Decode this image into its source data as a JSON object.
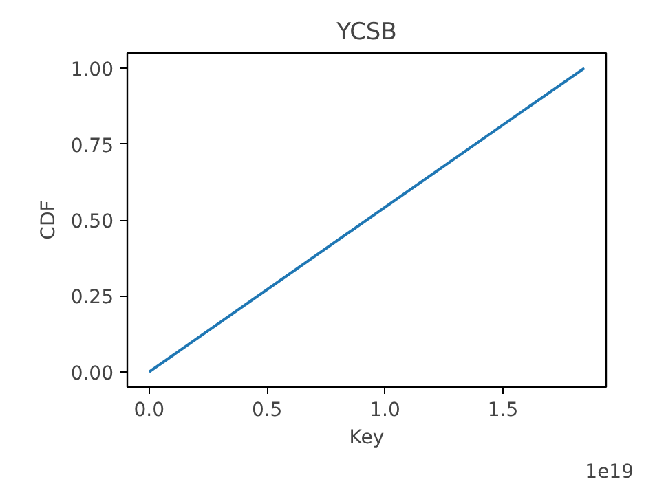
{
  "chart_data": {
    "type": "line",
    "title": "YCSB",
    "xlabel": "Key",
    "ylabel": "CDF",
    "x": [
      0,
      1.845
    ],
    "series": [
      {
        "color": "#1f77b4",
        "values": [
          0,
          1.0
        ]
      }
    ],
    "xlim": [
      -0.0925,
      1.9375
    ],
    "xticks": [
      {
        "value": 0,
        "label": "0.0"
      },
      {
        "value": 0.5,
        "label": "0.5"
      },
      {
        "value": 1.0,
        "label": "1.0"
      },
      {
        "value": 1.5,
        "label": "1.5"
      }
    ],
    "ylim": [
      -0.05,
      1.05
    ],
    "yticks": [
      {
        "value": 0,
        "label": "0.00"
      },
      {
        "value": 0.25,
        "label": "0.25"
      },
      {
        "value": 0.5,
        "label": "0.50"
      },
      {
        "value": 0.75,
        "label": "0.75"
      },
      {
        "value": 1.0,
        "label": "1.00"
      }
    ],
    "annotations": [
      "1e19"
    ],
    "grid": false,
    "line_style": "solid",
    "marker": "none"
  }
}
